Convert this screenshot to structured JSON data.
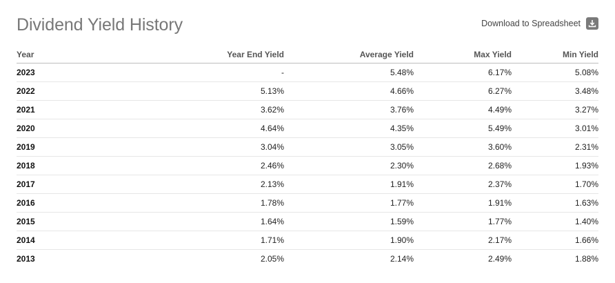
{
  "header": {
    "title": "Dividend Yield History",
    "download_label": "Download to Spreadsheet",
    "download_icon": "download-icon"
  },
  "table": {
    "columns": [
      "Year",
      "Year End Yield",
      "Average Yield",
      "Max Yield",
      "Min Yield"
    ],
    "rows": [
      [
        "2023",
        "-",
        "5.48%",
        "6.17%",
        "5.08%"
      ],
      [
        "2022",
        "5.13%",
        "4.66%",
        "6.27%",
        "3.48%"
      ],
      [
        "2021",
        "3.62%",
        "3.76%",
        "4.49%",
        "3.27%"
      ],
      [
        "2020",
        "4.64%",
        "4.35%",
        "5.49%",
        "3.01%"
      ],
      [
        "2019",
        "3.04%",
        "3.05%",
        "3.60%",
        "2.31%"
      ],
      [
        "2018",
        "2.46%",
        "2.30%",
        "2.68%",
        "1.93%"
      ],
      [
        "2017",
        "2.13%",
        "1.91%",
        "2.37%",
        "1.70%"
      ],
      [
        "2016",
        "1.78%",
        "1.77%",
        "1.91%",
        "1.63%"
      ],
      [
        "2015",
        "1.64%",
        "1.59%",
        "1.77%",
        "1.40%"
      ],
      [
        "2014",
        "1.71%",
        "1.90%",
        "2.17%",
        "1.66%"
      ],
      [
        "2013",
        "2.05%",
        "2.14%",
        "2.49%",
        "1.88%"
      ]
    ]
  },
  "colors": {
    "title": "#777777",
    "icon_bg": "#7a7a7a",
    "header_rule": "#bdbdbd",
    "row_rule": "#e6e6e6"
  }
}
